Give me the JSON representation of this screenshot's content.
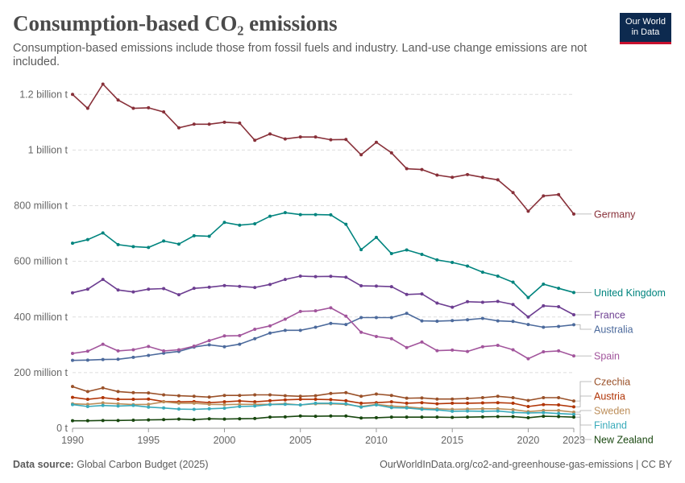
{
  "header": {
    "title": "Consumption-based CO₂ emissions",
    "subtitle": "Consumption-based emissions include those from fossil fuels and industry. Land-use change emissions are not included.",
    "logo_line1": "Our World",
    "logo_line2": "in Data"
  },
  "footer": {
    "source_label": "Data source:",
    "source_text": "Global Carbon Budget (2025)",
    "right_text": "OurWorldInData.org/co2-and-greenhouse-gas-emissions | CC BY"
  },
  "chart_data": {
    "type": "line",
    "title": "Consumption-based CO₂ emissions",
    "xlabel": "",
    "ylabel": "",
    "xlim": [
      1990,
      2023
    ],
    "ylim": [
      0,
      1250000000
    ],
    "grid": true,
    "legend": "right, labels at line ends",
    "x_ticks": [
      1990,
      1995,
      2000,
      2005,
      2010,
      2015,
      2020,
      2023
    ],
    "y_ticks": [
      {
        "value": 0,
        "label": "0 t"
      },
      {
        "value": 200000000,
        "label": "200 million t"
      },
      {
        "value": 400000000,
        "label": "400 million t"
      },
      {
        "value": 600000000,
        "label": "600 million t"
      },
      {
        "value": 800000000,
        "label": "800 million t"
      },
      {
        "value": 1000000000,
        "label": "1 billion t"
      },
      {
        "value": 1200000000,
        "label": "1.2 billion t"
      }
    ],
    "x": [
      1990,
      1991,
      1992,
      1993,
      1994,
      1995,
      1996,
      1997,
      1998,
      1999,
      2000,
      2001,
      2002,
      2003,
      2004,
      2005,
      2006,
      2007,
      2008,
      2009,
      2010,
      2011,
      2012,
      2013,
      2014,
      2015,
      2016,
      2017,
      2018,
      2019,
      2020,
      2021,
      2022,
      2023
    ],
    "series": [
      {
        "name": "Germany",
        "color": "#883039",
        "values": [
          1200,
          1150,
          1237,
          1180,
          1150,
          1152,
          1137,
          1080,
          1093,
          1093,
          1100,
          1097,
          1035,
          1058,
          1040,
          1047,
          1047,
          1037,
          1038,
          983,
          1028,
          990,
          933,
          930,
          910,
          902,
          912,
          902,
          893,
          847,
          780,
          835,
          840,
          770
        ]
      },
      {
        "name": "United Kingdom",
        "color": "#00847e",
        "values": [
          665,
          678,
          702,
          660,
          653,
          650,
          673,
          662,
          692,
          690,
          740,
          730,
          735,
          762,
          775,
          768,
          768,
          767,
          733,
          642,
          686,
          628,
          641,
          625,
          605,
          596,
          583,
          561,
          547,
          525,
          470,
          518,
          503,
          488
        ]
      },
      {
        "name": "France",
        "color": "#6d3e91",
        "values": [
          487,
          500,
          535,
          497,
          490,
          500,
          502,
          480,
          503,
          507,
          513,
          510,
          506,
          517,
          535,
          547,
          545,
          546,
          543,
          512,
          511,
          509,
          481,
          483,
          450,
          435,
          455,
          453,
          456,
          445,
          400,
          440,
          437,
          408
        ]
      },
      {
        "name": "Australia",
        "color": "#4c6a9c",
        "values": [
          244,
          245,
          247,
          248,
          255,
          262,
          270,
          276,
          292,
          300,
          293,
          302,
          322,
          342,
          352,
          352,
          363,
          377,
          373,
          398,
          398,
          398,
          413,
          386,
          385,
          387,
          390,
          395,
          386,
          384,
          373,
          363,
          366,
          372
        ]
      },
      {
        "name": "Spain",
        "color": "#a2559c",
        "values": [
          269,
          277,
          302,
          278,
          282,
          294,
          278,
          282,
          295,
          315,
          332,
          333,
          356,
          368,
          392,
          420,
          422,
          433,
          403,
          345,
          330,
          322,
          290,
          310,
          279,
          281,
          276,
          293,
          298,
          282,
          250,
          275,
          278,
          260
        ]
      },
      {
        "name": "Czechia",
        "color": "#9a5129",
        "values": [
          150,
          132,
          145,
          132,
          128,
          127,
          120,
          117,
          115,
          112,
          118,
          118,
          120,
          120,
          117,
          115,
          117,
          125,
          128,
          115,
          123,
          118,
          108,
          109,
          105,
          105,
          107,
          110,
          115,
          110,
          100,
          110,
          110,
          98
        ]
      },
      {
        "name": "Austria",
        "color": "#b13507",
        "values": [
          111,
          104,
          110,
          104,
          104,
          105,
          96,
          95,
          96,
          92,
          95,
          98,
          95,
          99,
          102,
          104,
          104,
          103,
          99,
          90,
          92,
          95,
          90,
          92,
          88,
          90,
          90,
          91,
          92,
          90,
          78,
          85,
          84,
          77
        ]
      },
      {
        "name": "Sweden",
        "color": "#bc8e5a",
        "values": [
          88,
          86,
          91,
          88,
          85,
          86,
          95,
          90,
          90,
          86,
          85,
          86,
          86,
          86,
          88,
          84,
          88,
          88,
          86,
          78,
          86,
          80,
          77,
          72,
          70,
          68,
          69,
          70,
          70,
          67,
          60,
          64,
          64,
          58
        ]
      },
      {
        "name": "Finland",
        "color": "#38aaba",
        "values": [
          85,
          78,
          82,
          80,
          82,
          76,
          73,
          69,
          68,
          70,
          72,
          78,
          80,
          85,
          86,
          84,
          90,
          90,
          88,
          76,
          84,
          74,
          73,
          68,
          66,
          61,
          62,
          61,
          62,
          57,
          55,
          56,
          53,
          50
        ]
      },
      {
        "name": "New Zealand",
        "color": "#18470f",
        "values": [
          27,
          27,
          28,
          28,
          29,
          30,
          31,
          33,
          31,
          34,
          33,
          34,
          35,
          40,
          41,
          44,
          43,
          44,
          44,
          37,
          38,
          40,
          40,
          40,
          40,
          39,
          40,
          41,
          42,
          42,
          38,
          43,
          42,
          40
        ]
      }
    ]
  }
}
